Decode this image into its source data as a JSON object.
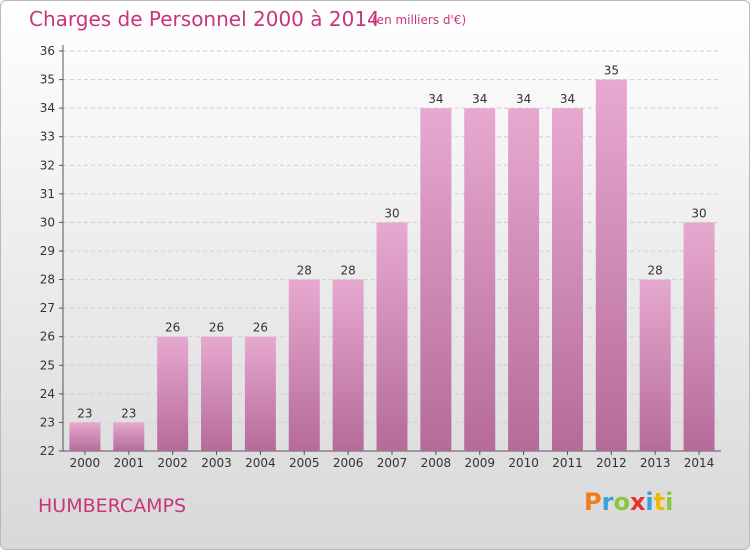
{
  "header": {
    "title": "Charges de Personnel 2000 à 2014",
    "subtitle": "(en milliers d'€)"
  },
  "footer": {
    "place": "HUMBERCAMPS",
    "logo": "Proxiti",
    "logo_letters": [
      {
        "char": "P",
        "color": "#f07d1a"
      },
      {
        "char": "r",
        "color": "#3aa0e0"
      },
      {
        "char": "o",
        "color": "#8cc63f"
      },
      {
        "char": "x",
        "color": "#e8312d"
      },
      {
        "char": "i",
        "color": "#3aa0e0"
      },
      {
        "char": "t",
        "color": "#f2b705"
      },
      {
        "char": "i",
        "color": "#8cc63f"
      }
    ]
  },
  "chart_data": {
    "type": "bar",
    "title": "Charges de Personnel 2000 à 2014",
    "subtitle": "(en milliers d'€)",
    "categories": [
      "2000",
      "2001",
      "2002",
      "2003",
      "2004",
      "2005",
      "2006",
      "2007",
      "2008",
      "2009",
      "2010",
      "2011",
      "2012",
      "2013",
      "2014"
    ],
    "values": [
      23,
      23,
      26,
      26,
      26,
      28,
      28,
      30,
      34,
      34,
      34,
      34,
      35,
      28,
      30
    ],
    "ylim": [
      22,
      36
    ],
    "yticks": [
      22,
      23,
      24,
      25,
      26,
      27,
      28,
      29,
      30,
      31,
      32,
      33,
      34,
      35,
      36
    ],
    "xlabel": "",
    "ylabel": "",
    "grid": true,
    "colors": {
      "bar_light": "#e7a9cf",
      "bar_dark": "#b56b99",
      "grid": "#cfcfcf",
      "axis": "#555555"
    }
  }
}
